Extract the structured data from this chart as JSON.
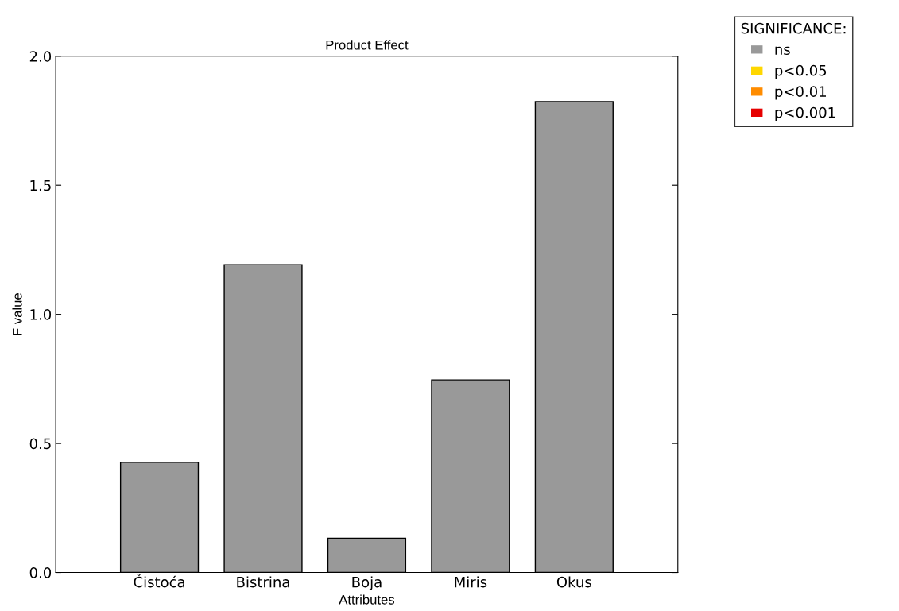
{
  "chart_data": {
    "type": "bar",
    "title": "Product Effect",
    "xlabel": "Attributes",
    "ylabel": "F value",
    "categories": [
      "Čistoća",
      "Bistrina",
      "Boja",
      "Miris",
      "Okus"
    ],
    "series": [
      {
        "name": "ns",
        "color": "#999999",
        "values": [
          0.427,
          1.192,
          0.133,
          0.746,
          1.824
        ]
      },
      {
        "name": "p<0.05",
        "color": "#ffd700",
        "values": [
          null,
          null,
          null,
          null,
          null
        ]
      },
      {
        "name": "p<0.01",
        "color": "#ff8c00",
        "values": [
          null,
          null,
          null,
          null,
          null
        ]
      },
      {
        "name": "p<0.001",
        "color": "#e60000",
        "values": [
          null,
          null,
          null,
          null,
          null
        ]
      }
    ],
    "legend_title": "SIGNIFICANCE:",
    "legend": "top right",
    "ylim": [
      0,
      2.0
    ],
    "yticks": [
      {
        "value": 0,
        "label": "0.0"
      },
      0.5,
      {
        "value": 1,
        "label": "1.0"
      },
      1.5,
      {
        "value": 2,
        "label": "2.0"
      }
    ],
    "grid": false
  }
}
